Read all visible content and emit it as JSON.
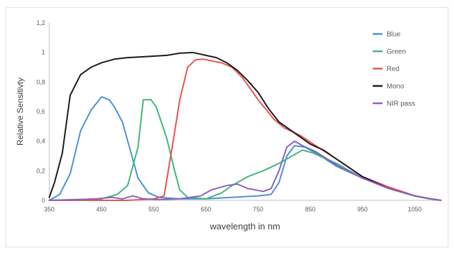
{
  "chart_data": {
    "type": "line",
    "title": "",
    "xlabel": "wavelength in nm",
    "ylabel": "Relative Sensitivty",
    "xlim": [
      350,
      1100
    ],
    "ylim": [
      0,
      1.2
    ],
    "x_ticks": [
      "350",
      "450",
      "550",
      "650",
      "750",
      "850",
      "950",
      "1050"
    ],
    "y_ticks": [
      "0",
      "0,2",
      "0,4",
      "0,6",
      "0,8",
      "1",
      "1,2"
    ],
    "grid": false,
    "legend_position": "right",
    "series": [
      {
        "name": "Blue",
        "color": "#4a90d9",
        "points": [
          [
            350,
            0
          ],
          [
            370,
            0.04
          ],
          [
            390,
            0.18
          ],
          [
            410,
            0.47
          ],
          [
            430,
            0.61
          ],
          [
            450,
            0.7
          ],
          [
            465,
            0.68
          ],
          [
            475,
            0.63
          ],
          [
            490,
            0.53
          ],
          [
            505,
            0.34
          ],
          [
            520,
            0.15
          ],
          [
            540,
            0.05
          ],
          [
            560,
            0.02
          ],
          [
            600,
            0.01
          ],
          [
            650,
            0.01
          ],
          [
            700,
            0.02
          ],
          [
            750,
            0.03
          ],
          [
            775,
            0.04
          ],
          [
            790,
            0.12
          ],
          [
            805,
            0.3
          ],
          [
            820,
            0.37
          ],
          [
            840,
            0.36
          ],
          [
            870,
            0.3
          ],
          [
            900,
            0.23
          ],
          [
            950,
            0.15
          ],
          [
            1000,
            0.08
          ],
          [
            1050,
            0.03
          ],
          [
            1080,
            0.01
          ],
          [
            1100,
            0
          ]
        ]
      },
      {
        "name": "Green",
        "color": "#3cb878",
        "points": [
          [
            350,
            0
          ],
          [
            400,
            0.005
          ],
          [
            450,
            0.01
          ],
          [
            480,
            0.04
          ],
          [
            500,
            0.1
          ],
          [
            520,
            0.36
          ],
          [
            530,
            0.68
          ],
          [
            545,
            0.68
          ],
          [
            555,
            0.63
          ],
          [
            575,
            0.42
          ],
          [
            590,
            0.2
          ],
          [
            600,
            0.07
          ],
          [
            615,
            0.02
          ],
          [
            650,
            0.01
          ],
          [
            680,
            0.05
          ],
          [
            700,
            0.1
          ],
          [
            730,
            0.16
          ],
          [
            760,
            0.2
          ],
          [
            790,
            0.25
          ],
          [
            815,
            0.3
          ],
          [
            835,
            0.34
          ],
          [
            855,
            0.32
          ],
          [
            900,
            0.25
          ],
          [
            950,
            0.15
          ],
          [
            1000,
            0.09
          ],
          [
            1050,
            0.03
          ],
          [
            1080,
            0.01
          ],
          [
            1100,
            0
          ]
        ]
      },
      {
        "name": "Red",
        "color": "#e8524f",
        "points": [
          [
            350,
            0
          ],
          [
            500,
            0
          ],
          [
            550,
            0.01
          ],
          [
            570,
            0.03
          ],
          [
            585,
            0.35
          ],
          [
            600,
            0.68
          ],
          [
            615,
            0.9
          ],
          [
            630,
            0.95
          ],
          [
            645,
            0.955
          ],
          [
            680,
            0.93
          ],
          [
            700,
            0.9
          ],
          [
            720,
            0.83
          ],
          [
            750,
            0.68
          ],
          [
            780,
            0.55
          ],
          [
            800,
            0.49
          ],
          [
            830,
            0.44
          ],
          [
            860,
            0.37
          ],
          [
            900,
            0.28
          ],
          [
            950,
            0.16
          ],
          [
            1000,
            0.09
          ],
          [
            1050,
            0.03
          ],
          [
            1080,
            0.01
          ],
          [
            1100,
            0
          ]
        ]
      },
      {
        "name": "Mono",
        "color": "#1a1a1a",
        "points": [
          [
            350,
            0.02
          ],
          [
            360,
            0.12
          ],
          [
            375,
            0.32
          ],
          [
            390,
            0.71
          ],
          [
            410,
            0.85
          ],
          [
            430,
            0.9
          ],
          [
            450,
            0.93
          ],
          [
            475,
            0.955
          ],
          [
            500,
            0.965
          ],
          [
            525,
            0.97
          ],
          [
            550,
            0.975
          ],
          [
            575,
            0.98
          ],
          [
            600,
            0.995
          ],
          [
            625,
            1.0
          ],
          [
            650,
            0.98
          ],
          [
            670,
            0.965
          ],
          [
            690,
            0.93
          ],
          [
            710,
            0.88
          ],
          [
            730,
            0.81
          ],
          [
            750,
            0.73
          ],
          [
            770,
            0.62
          ],
          [
            790,
            0.53
          ],
          [
            810,
            0.48
          ],
          [
            830,
            0.43
          ],
          [
            850,
            0.38
          ],
          [
            875,
            0.34
          ],
          [
            900,
            0.28
          ],
          [
            950,
            0.16
          ],
          [
            1000,
            0.08
          ],
          [
            1050,
            0.03
          ],
          [
            1080,
            0.01
          ],
          [
            1100,
            0
          ]
        ]
      },
      {
        "name": "NIR pass",
        "color": "#8b5fbf",
        "points": [
          [
            350,
            0
          ],
          [
            410,
            0.005
          ],
          [
            440,
            0.01
          ],
          [
            470,
            0.02
          ],
          [
            490,
            0.01
          ],
          [
            510,
            0.03
          ],
          [
            530,
            0.01
          ],
          [
            560,
            0.005
          ],
          [
            600,
            0.01
          ],
          [
            640,
            0.03
          ],
          [
            660,
            0.07
          ],
          [
            690,
            0.1
          ],
          [
            710,
            0.11
          ],
          [
            730,
            0.08
          ],
          [
            760,
            0.06
          ],
          [
            775,
            0.08
          ],
          [
            790,
            0.2
          ],
          [
            805,
            0.36
          ],
          [
            820,
            0.4
          ],
          [
            835,
            0.37
          ],
          [
            860,
            0.33
          ],
          [
            900,
            0.24
          ],
          [
            950,
            0.15
          ],
          [
            1000,
            0.08
          ],
          [
            1050,
            0.03
          ],
          [
            1080,
            0.01
          ],
          [
            1100,
            0
          ]
        ]
      }
    ]
  }
}
